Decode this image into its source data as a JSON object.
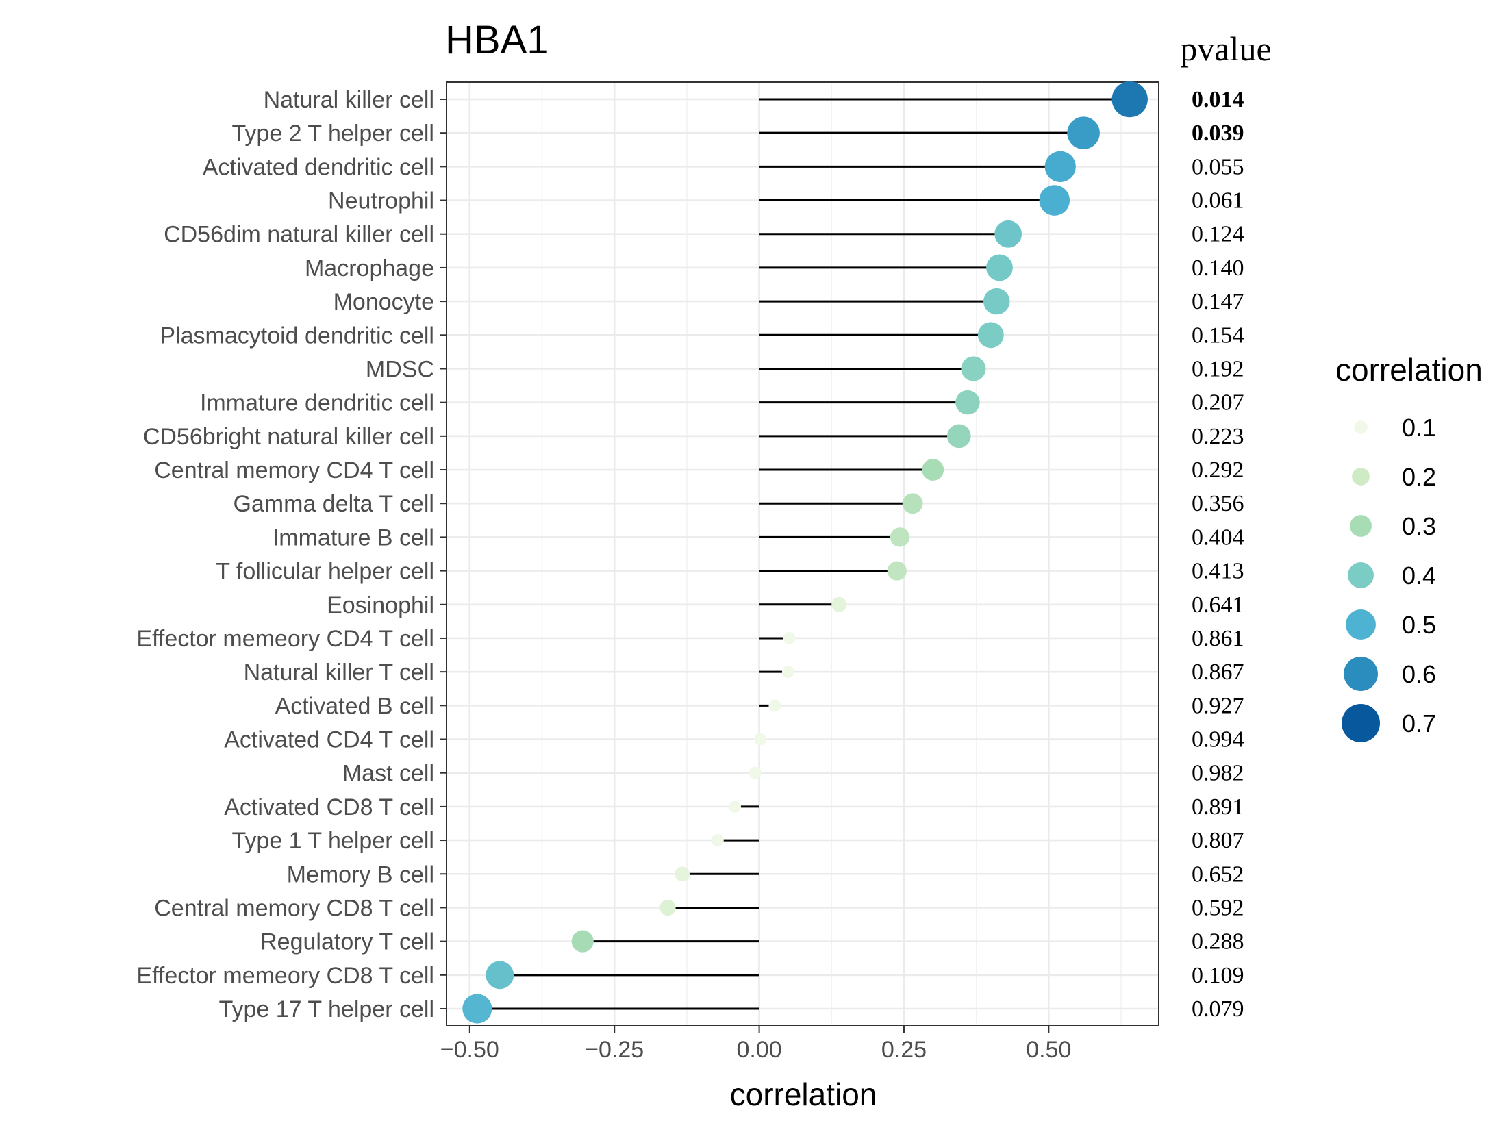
{
  "chart_data": {
    "type": "lollipop",
    "title": "HBA1",
    "xlabel": "correlation",
    "ylabel": "",
    "xlim": [
      -0.54,
      0.69
    ],
    "xticks": [
      -0.5,
      -0.25,
      0.0,
      0.25,
      0.5
    ],
    "xtick_labels": [
      "−0.50",
      "−0.25",
      "0.00",
      "0.25",
      "0.50"
    ],
    "grid": true,
    "pvalue_header": "pvalue",
    "legend": {
      "title": "correlation",
      "position": "right",
      "entries": [
        {
          "label": "0.1",
          "value": 0.1,
          "color": "#f0f9e8"
        },
        {
          "label": "0.2",
          "value": 0.2,
          "color": "#cfebc6"
        },
        {
          "label": "0.3",
          "value": 0.3,
          "color": "#a8dcb5"
        },
        {
          "label": "0.4",
          "value": 0.4,
          "color": "#7bccc4"
        },
        {
          "label": "0.5",
          "value": 0.5,
          "color": "#4eb3d3"
        },
        {
          "label": "0.6",
          "value": 0.6,
          "color": "#2b8cbe"
        },
        {
          "label": "0.7",
          "value": 0.7,
          "color": "#08589e"
        }
      ]
    },
    "points": [
      {
        "label": "Natural killer cell",
        "value": 0.64,
        "pvalue": "0.014",
        "significant": true
      },
      {
        "label": "Type 2 T helper cell",
        "value": 0.56,
        "pvalue": "0.039",
        "significant": true
      },
      {
        "label": "Activated dendritic cell",
        "value": 0.52,
        "pvalue": "0.055",
        "significant": false
      },
      {
        "label": "Neutrophil",
        "value": 0.51,
        "pvalue": "0.061",
        "significant": false
      },
      {
        "label": "CD56dim natural killer cell",
        "value": 0.43,
        "pvalue": "0.124",
        "significant": false
      },
      {
        "label": "Macrophage",
        "value": 0.415,
        "pvalue": "0.140",
        "significant": false
      },
      {
        "label": "Monocyte",
        "value": 0.41,
        "pvalue": "0.147",
        "significant": false
      },
      {
        "label": "Plasmacytoid dendritic cell",
        "value": 0.4,
        "pvalue": "0.154",
        "significant": false
      },
      {
        "label": "MDSC",
        "value": 0.37,
        "pvalue": "0.192",
        "significant": false
      },
      {
        "label": "Immature dendritic cell",
        "value": 0.36,
        "pvalue": "0.207",
        "significant": false
      },
      {
        "label": "CD56bright natural killer cell",
        "value": 0.345,
        "pvalue": "0.223",
        "significant": false
      },
      {
        "label": "Central memory CD4 T cell",
        "value": 0.3,
        "pvalue": "0.292",
        "significant": false
      },
      {
        "label": "Gamma delta T cell",
        "value": 0.265,
        "pvalue": "0.356",
        "significant": false
      },
      {
        "label": "Immature  B cell",
        "value": 0.243,
        "pvalue": "0.404",
        "significant": false
      },
      {
        "label": "T follicular helper cell",
        "value": 0.238,
        "pvalue": "0.413",
        "significant": false
      },
      {
        "label": "Eosinophil",
        "value": 0.138,
        "pvalue": "0.641",
        "significant": false
      },
      {
        "label": "Effector memeory CD4 T cell",
        "value": 0.052,
        "pvalue": "0.861",
        "significant": false
      },
      {
        "label": "Natural killer T cell",
        "value": 0.05,
        "pvalue": "0.867",
        "significant": false
      },
      {
        "label": "Activated B cell",
        "value": 0.027,
        "pvalue": "0.927",
        "significant": false
      },
      {
        "label": "Activated CD4 T cell",
        "value": 0.002,
        "pvalue": "0.994",
        "significant": false
      },
      {
        "label": "Mast cell",
        "value": -0.007,
        "pvalue": "0.982",
        "significant": false
      },
      {
        "label": "Activated CD8 T cell",
        "value": -0.042,
        "pvalue": "0.891",
        "significant": false
      },
      {
        "label": "Type 1 T helper cell",
        "value": -0.072,
        "pvalue": "0.807",
        "significant": false
      },
      {
        "label": "Memory B cell",
        "value": -0.133,
        "pvalue": "0.652",
        "significant": false
      },
      {
        "label": "Central memory CD8 T cell",
        "value": -0.158,
        "pvalue": "0.592",
        "significant": false
      },
      {
        "label": "Regulatory T cell",
        "value": -0.305,
        "pvalue": "0.288",
        "significant": false
      },
      {
        "label": "Effector memeory CD8 T cell",
        "value": -0.448,
        "pvalue": "0.109",
        "significant": false
      },
      {
        "label": "Type 17 T helper cell",
        "value": -0.487,
        "pvalue": "0.079",
        "significant": false
      }
    ]
  }
}
